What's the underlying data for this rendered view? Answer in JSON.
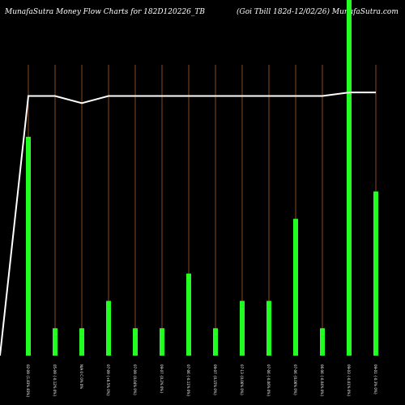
{
  "header": {
    "left_title": "MunafaSutra  Money Flow  Charts for 182D120226_TB",
    "right_title": "(Goi   Tbill 182d-12/02/26) MunafaSutra.com"
  },
  "colors": {
    "background": "#000000",
    "bar": "#22ff22",
    "line": "#ffffff",
    "grid": "#8a4a1a",
    "label": "#ffffff"
  },
  "chart_data": {
    "type": "bar",
    "categories": [
      "02-09 {1.83% 83%}",
      "05-09 {-0.12% 0%}",
      "N/A   0 C 0% 0%",
      "07-09 {+0.5% 0%}",
      "07-09 {0.04% 0%}",
      "09-07 {0.2% 0%}",
      "07-06 {-0.11% 0%}",
      "09-07 {0.15% 0%}",
      "07-13 {0.06% 0%}",
      "07-06 {-0.06% 0%}",
      "07-06 {0.06% 0%}",
      "06-06 {-0.04% 0%}",
      "09-03 {-0.01% 0%}",
      "09-01 {-0.3% 0%}"
    ],
    "series": [
      {
        "type": "bar",
        "values": [
          8,
          1,
          1,
          2,
          1,
          1,
          3,
          1,
          2,
          2,
          5,
          1,
          14,
          6
        ]
      },
      {
        "type": "line",
        "values": [
          73,
          73,
          71,
          73,
          73,
          73,
          73,
          73,
          73,
          73,
          73,
          73,
          74,
          74
        ]
      }
    ],
    "bar_ylim": [
      0,
      13
    ],
    "line_ylim": [
      0,
      100
    ],
    "line_start_value": 0,
    "grid": "vertical",
    "legend": "none"
  }
}
